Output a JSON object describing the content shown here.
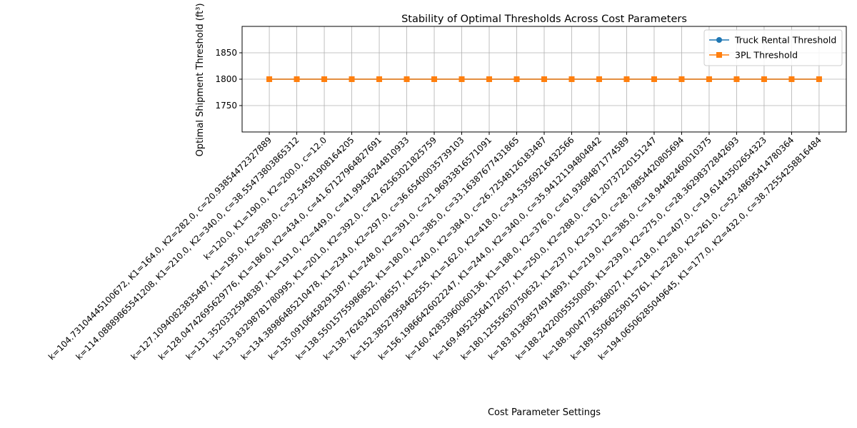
{
  "chart_data": {
    "type": "line",
    "title": "Stability of Optimal Thresholds Across Cost Parameters",
    "xlabel": "Cost Parameter Settings",
    "ylabel": "Optimal Shipment Threshold (ft³)",
    "ylim": [
      1700,
      1900
    ],
    "yticks": [
      1750,
      1800,
      1850
    ],
    "grid": true,
    "legend_position": "top-right",
    "categories": [
      "k=104.73104445100672, K1=164.0, K2=282.0, c=20.93854472327889",
      "k=114.08889865541208, K1=210.0, K2=340.0, c=38.55473803865312",
      "k=120.0, K1=190.0, K2=200.0, c=12.0",
      "k=127.10940823835487, K1=195.0, K2=389.0, c=32.54581908164205",
      "k=128.04742695629776, K1=186.0, K2=434.0, c=41.67127964827691",
      "k=131.35203325948387, K1=191.0, K2=449.0, c=41.99436244810933",
      "k=133.83298781780995, K1=201.0, K2=392.0, c=42.62563021825759",
      "k=134.38986485210478, K1=234.0, K2=297.0, c=36.65400035739103",
      "k=135.09106458291387, K1=248.0, K2=391.0, c=21.96933816571091",
      "k=138.55015755986852, K1=180.0, K2=385.0, c=33.16387677431865",
      "k=138.76263420786557, K1=240.0, K2=384.0, c=26.72548126183487",
      "k=152.38527958462555, K1=162.0, K2=418.0, c=34.53569216432566",
      "k=156.19866426022247, K1=244.0, K2=340.0, c=35.94121194804842",
      "k=160.42833960060136, K1=188.0, K2=376.0, c=61.93684871774589",
      "k=169.49523564172057, K1=250.0, K2=288.0, c=61.20737220151247",
      "k=180.12555630750632, K1=237.0, K2=312.0, c=28.78854420805694",
      "k=183.81368574914893, K1=219.0, K2=385.0, c=18.94482460010375",
      "k=188.24220055550005, K1=239.0, K2=275.0, c=28.36298372842693",
      "k=188.90047736368027, K1=218.0, K2=407.0, c=19.61443502654323",
      "k=189.55066259015761, K1=228.0, K2=261.0, c=52.48695414780364",
      "k=194.06506285049645, K1=177.0, K2=432.0, c=38.72554258816484"
    ],
    "series": [
      {
        "name": "Truck Rental Threshold",
        "color": "#1f77b4",
        "marker": "circle",
        "values": [
          1800,
          1800,
          1800,
          1800,
          1800,
          1800,
          1800,
          1800,
          1800,
          1800,
          1800,
          1800,
          1800,
          1800,
          1800,
          1800,
          1800,
          1800,
          1800,
          1800,
          1800
        ]
      },
      {
        "name": "3PL Threshold",
        "color": "#ff7f0e",
        "marker": "square",
        "values": [
          1800,
          1800,
          1800,
          1800,
          1800,
          1800,
          1800,
          1800,
          1800,
          1800,
          1800,
          1800,
          1800,
          1800,
          1800,
          1800,
          1800,
          1800,
          1800,
          1800,
          1800
        ]
      }
    ]
  }
}
